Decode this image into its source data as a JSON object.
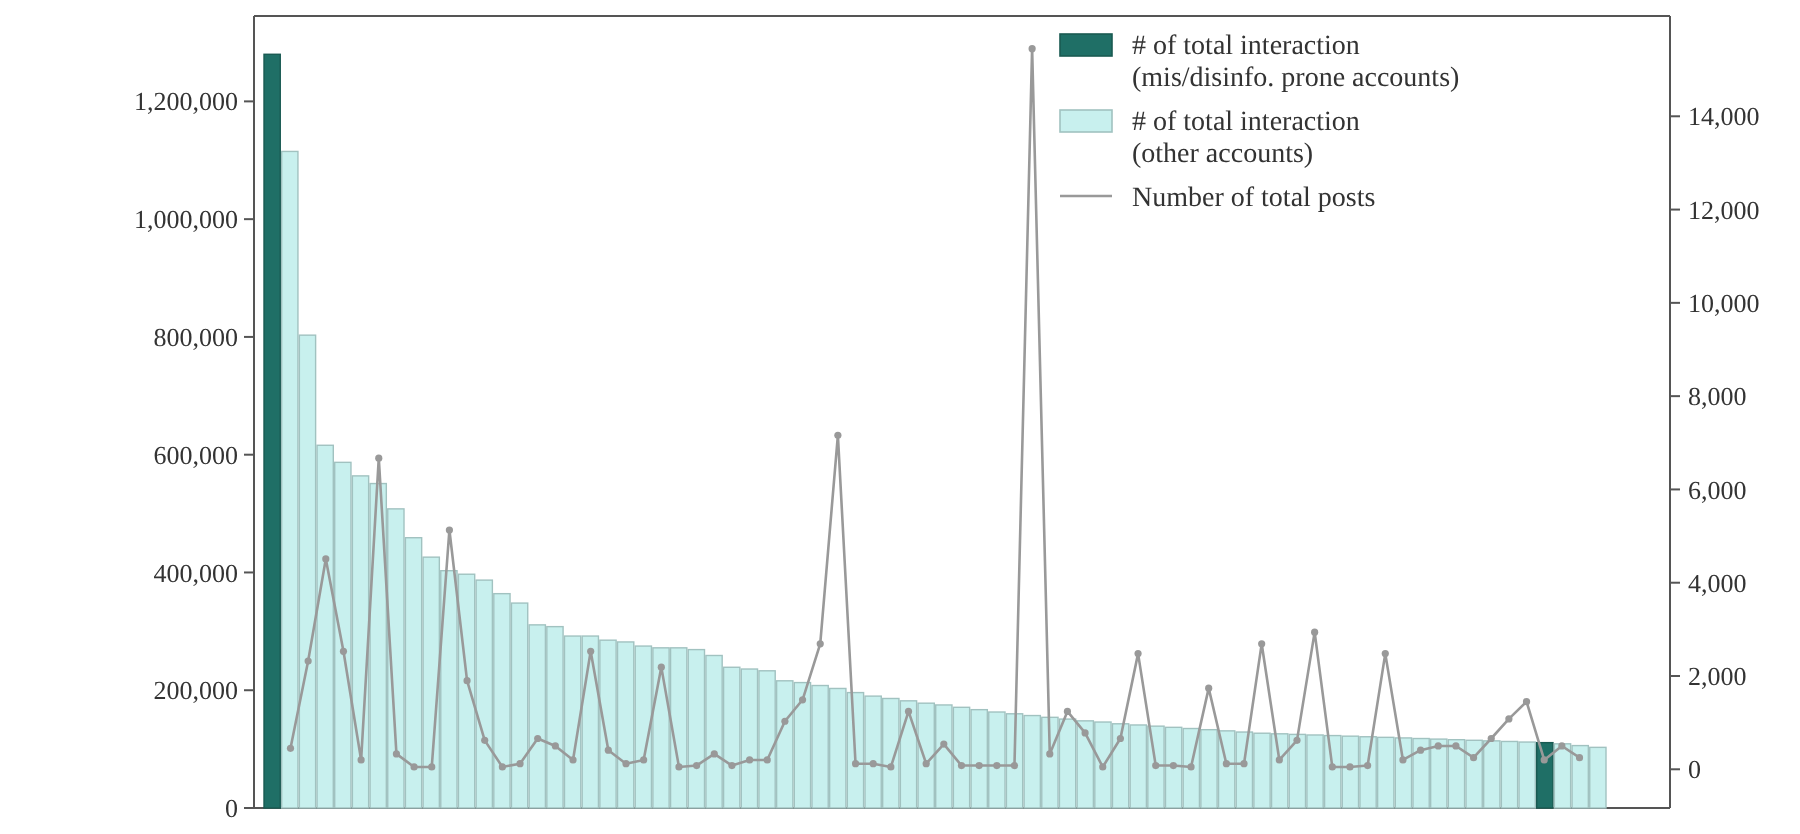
{
  "chart_data": [
    {
      "type": "bar",
      "stacked": true,
      "legend": "top right",
      "tick_labels": "y",
      "categories": [
        null,
        null,
        null,
        null,
        null,
        null,
        null,
        null,
        null,
        null,
        null,
        null,
        null,
        null,
        null,
        null,
        null,
        null,
        null,
        null,
        null,
        null,
        null,
        null,
        null,
        null,
        null,
        null,
        null,
        null,
        null,
        null,
        null,
        null,
        null,
        null,
        null,
        null,
        null,
        null,
        null,
        null,
        null,
        null,
        null,
        null,
        null,
        null,
        null,
        null,
        null,
        null,
        null,
        null,
        null,
        null,
        null,
        null,
        null,
        null,
        null,
        null,
        null,
        null,
        null,
        null,
        null,
        null,
        null,
        null,
        null,
        null,
        null,
        null,
        null,
        null
      ],
      "ylim": [
        0,
        1345000
      ],
      "yticks": [
        {
          "value": 0,
          "label": "0"
        },
        {
          "value": 200000,
          "label": "200,000"
        },
        {
          "value": 400000,
          "label": "400,000"
        },
        {
          "value": 600000,
          "label": "600,000"
        },
        {
          "value": 800000,
          "label": "800,000"
        },
        {
          "value": 1000000,
          "label": "1,000,000"
        },
        {
          "value": 1200000,
          "label": "1,200,000"
        }
      ],
      "series": [
        {
          "name": "# of total interaction\n(mis/disinfo. prone accounts)",
          "color": "#1f6f66",
          "values": [
            1280000,
            0,
            0,
            0,
            0,
            0,
            0,
            0,
            0,
            0,
            0,
            0,
            0,
            0,
            0,
            0,
            0,
            0,
            0,
            0,
            0,
            0,
            0,
            0,
            0,
            0,
            0,
            0,
            0,
            0,
            0,
            0,
            0,
            0,
            0,
            0,
            0,
            0,
            0,
            0,
            0,
            0,
            0,
            0,
            0,
            0,
            0,
            0,
            0,
            0,
            0,
            0,
            0,
            0,
            0,
            0,
            0,
            0,
            0,
            0,
            0,
            0,
            0,
            0,
            0,
            0,
            0,
            0,
            0,
            0,
            0,
            0,
            111000,
            0,
            0,
            0
          ]
        },
        {
          "name": "# of total interaction\n(other accounts)",
          "color": "#c8f0ee",
          "values": [
            0,
            1115000,
            803000,
            616000,
            587000,
            564000,
            551000,
            508000,
            459000,
            426000,
            403000,
            397000,
            387000,
            364000,
            348000,
            311000,
            308000,
            292000,
            292000,
            285000,
            282000,
            275000,
            272000,
            272000,
            269000,
            259000,
            239000,
            236000,
            233000,
            216000,
            213000,
            208000,
            203000,
            196000,
            190000,
            186000,
            182000,
            178000,
            175000,
            171000,
            167000,
            163000,
            160000,
            157000,
            154000,
            151000,
            148000,
            146000,
            143000,
            141000,
            139000,
            137000,
            135000,
            133000,
            131000,
            129000,
            127000,
            126000,
            125000,
            124000,
            123000,
            122000,
            121000,
            120000,
            119000,
            118000,
            117000,
            116000,
            115000,
            114000,
            113000,
            112000,
            0,
            109000,
            106000,
            103000
          ]
        }
      ]
    },
    {
      "type": "line",
      "legend": "top right",
      "tick_labels": "y",
      "marker": "circle",
      "line_style": "solid",
      "categories": [
        null,
        null,
        null,
        null,
        null,
        null,
        null,
        null,
        null,
        null,
        null,
        null,
        null,
        null,
        null,
        null,
        null,
        null,
        null,
        null,
        null,
        null,
        null,
        null,
        null,
        null,
        null,
        null,
        null,
        null,
        null,
        null,
        null,
        null,
        null,
        null,
        null,
        null,
        null,
        null,
        null,
        null,
        null,
        null,
        null,
        null,
        null,
        null,
        null,
        null,
        null,
        null,
        null,
        null,
        null,
        null,
        null,
        null,
        null,
        null,
        null,
        null,
        null,
        null,
        null,
        null,
        null,
        null,
        null,
        null,
        null,
        null,
        null,
        null
      ],
      "ylim": [
        -830,
        16150
      ],
      "yticks": [
        {
          "value": 0,
          "label": "0"
        },
        {
          "value": 2000,
          "label": "2,000"
        },
        {
          "value": 4000,
          "label": "4,000"
        },
        {
          "value": 6000,
          "label": "6,000"
        },
        {
          "value": 8000,
          "label": "8,000"
        },
        {
          "value": 10000,
          "label": "10,000"
        },
        {
          "value": 12000,
          "label": "12,000"
        },
        {
          "value": 14000,
          "label": "14,000"
        }
      ],
      "series": [
        {
          "name": "Number of total posts",
          "color": "#999999",
          "values": [
            450,
            2320,
            4510,
            2530,
            200,
            6670,
            330,
            50,
            50,
            5130,
            1900,
            620,
            50,
            120,
            660,
            500,
            200,
            2530,
            410,
            120,
            200,
            2190,
            50,
            80,
            330,
            80,
            200,
            200,
            1030,
            1490,
            2690,
            7160,
            120,
            120,
            50,
            1240,
            120,
            540,
            80,
            80,
            80,
            80,
            15450,
            330,
            1240,
            780,
            50,
            660,
            2480,
            80,
            80,
            50,
            1740,
            120,
            120,
            2690,
            200,
            620,
            2940,
            50,
            50,
            80,
            2480,
            200,
            410,
            500,
            500,
            250,
            660,
            1080,
            1450,
            200,
            500,
            250
          ]
        }
      ]
    }
  ]
}
